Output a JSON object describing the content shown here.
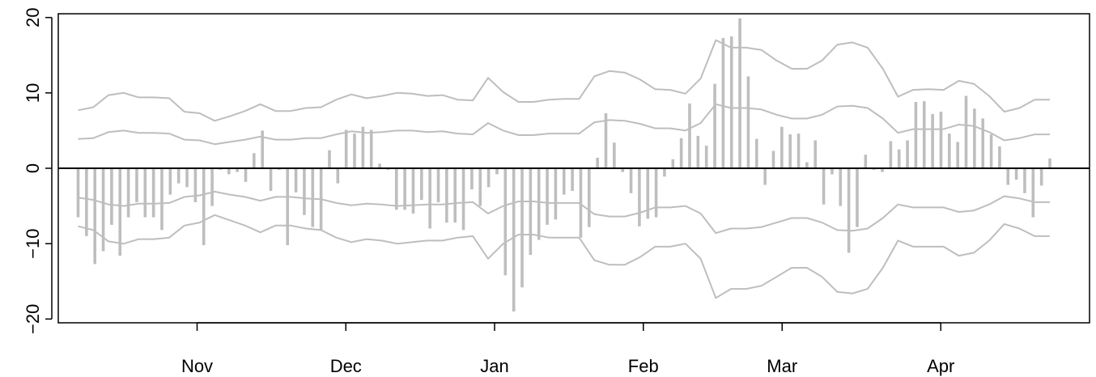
{
  "chart_data": {
    "type": "bar",
    "title": "",
    "xlabel": "",
    "ylabel": "",
    "x_tick_labels": [
      "Nov",
      "Dec",
      "Jan",
      "Feb",
      "Mar",
      "Apr"
    ],
    "y_tick_labels": [
      "−20",
      "−10",
      "0",
      "10",
      "20"
    ],
    "y_ticks": [
      -20,
      -10,
      0,
      10,
      20
    ],
    "ylim": [
      -20.5,
      20.5
    ],
    "x_range_days": [
      -28,
      180
    ],
    "x_tick_days": [
      0,
      30,
      60,
      90,
      118,
      150
    ],
    "reference_line": 0,
    "grid": false,
    "legend": "none",
    "colors": {
      "bars": "#bebebe",
      "bands": "#bebebe",
      "zero_line": "#000000",
      "axes": "#000000"
    },
    "series": [
      {
        "values": [
          -6.5,
          -9,
          -12.7,
          -11,
          -7.5,
          -11.6,
          -6.5,
          -4.5,
          -6.5,
          -6.5,
          -8.2,
          -3.5,
          -2,
          -2.5,
          -4.5,
          -10.2,
          -5,
          -0.2,
          -0.8,
          -0.5,
          -1.8,
          2,
          5,
          -3,
          -0.2,
          -10.2,
          -3.2,
          -6.2,
          -7.8,
          -8.2,
          2.4,
          -2,
          5.1,
          4.6,
          5.5,
          5.1,
          0.6,
          -0.2,
          -5.5,
          -5.5,
          -6,
          -4.2,
          -8,
          -4.5,
          -7.2,
          -7.2,
          -8.2,
          -2.8,
          -5,
          -2.5,
          -0.8,
          -14.2,
          -19,
          -15.8,
          -11.5,
          -9.5,
          -7.5,
          -6.8,
          -3.5,
          -3,
          -9.2,
          -7.8,
          1.4,
          7.3,
          3.4,
          -0.5,
          -3.3,
          -7.7,
          -6.7,
          -6.5,
          -1.1,
          1.2,
          4,
          8.6,
          4.3,
          3,
          11.2,
          17.3,
          17.5,
          19.9,
          12.2,
          3.9,
          -2.2,
          2.3,
          5.5,
          4.5,
          4.6,
          0.8,
          3.7,
          -4.8,
          -0.8,
          -5,
          -11.2,
          -7.8,
          1.8,
          -0.2,
          -0.5,
          3.6,
          2.5,
          3.7,
          8.8,
          8.9,
          7.2,
          7.5,
          4.6,
          3.5,
          9.6,
          7.9,
          6.6,
          4.5,
          2.9,
          -2.2,
          -1.5,
          -3.3,
          -6.5,
          -2.3,
          1.3
        ]
      },
      {
        "name": "inner_band",
        "values": [
          3.9,
          4,
          4.8,
          5,
          4.7,
          4.7,
          4.6,
          3.8,
          3.7,
          3.2,
          3.5,
          3.8,
          4.2,
          3.8,
          3.8,
          4,
          4,
          4.5,
          4.9,
          4.7,
          4.8,
          5,
          5,
          4.8,
          4.9,
          4.6,
          4.5,
          6,
          5,
          4.4,
          4.4,
          4.6,
          4.6,
          4.6,
          6.1,
          6.4,
          6.3,
          5.9,
          5.3,
          5.3,
          5,
          6,
          8.5,
          8,
          8,
          7.8,
          7.1,
          6.6,
          6.6,
          7.1,
          8.2,
          8.3,
          8,
          6.6,
          4.7,
          5.2,
          5.2,
          5.2,
          5.8,
          5.6,
          4.8,
          3.7,
          4,
          4.5,
          4.5
        ]
      },
      {
        "name": "outer_band",
        "values": [
          7.7,
          8.1,
          9.7,
          10,
          9.4,
          9.4,
          9.3,
          7.5,
          7.3,
          6.3,
          6.9,
          7.6,
          8.5,
          7.6,
          7.6,
          8,
          8.1,
          9.1,
          9.8,
          9.3,
          9.6,
          10,
          9.9,
          9.6,
          9.7,
          9.1,
          9,
          12,
          10.1,
          8.8,
          8.8,
          9.1,
          9.2,
          9.2,
          12.2,
          12.9,
          12.7,
          11.8,
          10.5,
          10.4,
          9.9,
          11.9,
          17,
          16,
          16,
          15.7,
          14.3,
          13.2,
          13.2,
          14.3,
          16.4,
          16.7,
          16,
          13.2,
          9.5,
          10.4,
          10.5,
          10.4,
          11.6,
          11.2,
          9.6,
          7.5,
          8,
          9.1,
          9.1
        ]
      },
      {
        "name": "lower_inner_band",
        "values": [
          -3.9,
          -4.2,
          -4.8,
          -5,
          -4.7,
          -4.7,
          -4.6,
          -3.8,
          -3.6,
          -3.1,
          -3.5,
          -3.8,
          -4.3,
          -3.8,
          -3.8,
          -4,
          -4.1,
          -4.6,
          -4.9,
          -4.7,
          -4.8,
          -5,
          -4.9,
          -4.8,
          -4.8,
          -4.6,
          -4.5,
          -6,
          -5,
          -4.4,
          -4.4,
          -4.6,
          -4.6,
          -4.6,
          -6.1,
          -6.4,
          -6.4,
          -5.9,
          -5.2,
          -5.2,
          -5,
          -6,
          -8.6,
          -8,
          -8,
          -7.8,
          -7.2,
          -6.6,
          -6.6,
          -7.2,
          -8.2,
          -8.3,
          -8,
          -6.6,
          -4.8,
          -5.2,
          -5.2,
          -5.2,
          -5.8,
          -5.6,
          -4.8,
          -3.7,
          -4,
          -4.5,
          -4.5
        ]
      },
      {
        "name": "lower_outer_band",
        "values": [
          -7.7,
          -8.2,
          -9.7,
          -10,
          -9.4,
          -9.4,
          -9.2,
          -7.6,
          -7.2,
          -6.2,
          -6.9,
          -7.6,
          -8.5,
          -7.6,
          -7.6,
          -8,
          -8.2,
          -9.2,
          -9.8,
          -9.4,
          -9.6,
          -10,
          -9.8,
          -9.6,
          -9.6,
          -9.2,
          -9,
          -12,
          -10,
          -8.8,
          -8.8,
          -9.2,
          -9.2,
          -9.2,
          -12.2,
          -12.8,
          -12.8,
          -11.8,
          -10.4,
          -10.4,
          -10,
          -12,
          -17.2,
          -16,
          -16,
          -15.6,
          -14.4,
          -13.2,
          -13.2,
          -14.4,
          -16.4,
          -16.6,
          -16,
          -13.2,
          -9.6,
          -10.4,
          -10.4,
          -10.4,
          -11.6,
          -11.2,
          -9.6,
          -7.4,
          -8,
          -9,
          -9
        ]
      }
    ]
  }
}
